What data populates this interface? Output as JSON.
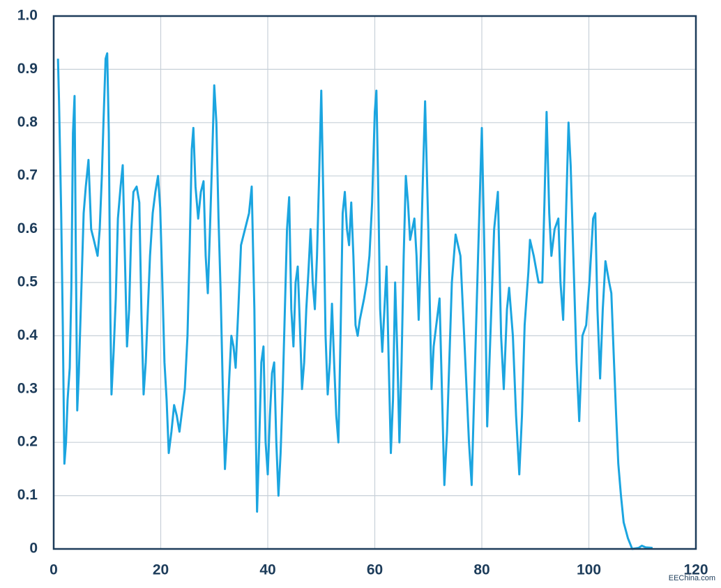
{
  "chart_data": {
    "type": "line",
    "color": "#1ba5e0",
    "annotation": "EEChina.com",
    "xlim": [
      0,
      120
    ],
    "xticks": [
      0,
      20,
      40,
      60,
      80,
      100,
      120
    ],
    "ylim": [
      0,
      1
    ],
    "yticks": [
      0,
      0.1,
      0.2,
      0.3,
      0.4,
      0.5,
      0.6,
      0.7,
      0.8,
      0.9,
      {
        "value": 1,
        "label": "1.0"
      }
    ],
    "grid": true,
    "x": [
      0.8,
      1.0,
      1.4,
      1.7,
      2.0,
      2.3,
      2.6,
      3.0,
      3.3,
      3.6,
      3.9,
      4.1,
      4.4,
      4.7,
      5.0,
      5.3,
      5.6,
      6.0,
      6.5,
      7.0,
      7.5,
      8.2,
      8.6,
      9.0,
      9.3,
      9.7,
      10.0,
      10.3,
      10.6,
      10.8,
      11.2,
      11.6,
      12.0,
      12.5,
      12.9,
      13.3,
      13.7,
      14.1,
      14.5,
      14.9,
      15.5,
      16.0,
      16.4,
      16.8,
      17.2,
      17.6,
      18.0,
      18.5,
      19.0,
      19.5,
      19.9,
      20.3,
      20.7,
      21.1,
      21.5,
      22.0,
      22.5,
      23.0,
      23.5,
      24.0,
      24.5,
      25.0,
      25.4,
      25.8,
      26.1,
      26.5,
      27.0,
      27.5,
      28.0,
      28.4,
      28.8,
      29.2,
      29.6,
      30.0,
      30.4,
      30.8,
      31.2,
      31.6,
      32.0,
      32.4,
      32.8,
      33.2,
      33.6,
      34.0,
      34.5,
      35.0,
      35.5,
      36.0,
      36.5,
      37.0,
      37.5,
      37.8,
      38.0,
      38.4,
      38.8,
      39.2,
      39.6,
      40.0,
      40.4,
      40.8,
      41.2,
      41.6,
      42.0,
      42.4,
      42.8,
      43.2,
      43.6,
      44.0,
      44.4,
      44.8,
      45.2,
      45.6,
      46.0,
      46.4,
      46.8,
      47.2,
      47.6,
      48.0,
      48.4,
      48.8,
      49.2,
      49.6,
      50.0,
      50.4,
      50.8,
      51.2,
      51.6,
      52.0,
      52.4,
      52.8,
      53.2,
      53.6,
      54.0,
      54.4,
      54.8,
      55.2,
      55.6,
      56.0,
      56.4,
      56.8,
      57.2,
      57.6,
      58.0,
      58.5,
      59.0,
      59.5,
      60.0,
      60.3,
      60.6,
      61.0,
      61.4,
      61.8,
      62.2,
      62.6,
      63.0,
      63.4,
      63.8,
      64.2,
      64.6,
      65.0,
      65.4,
      65.8,
      66.2,
      66.6,
      67.0,
      67.4,
      67.8,
      68.2,
      68.6,
      69.0,
      69.4,
      70.0,
      70.6,
      71.0,
      72.1,
      73.0,
      73.5,
      74.4,
      75.1,
      76.0,
      76.7,
      77.6,
      78.1,
      78.6,
      79.3,
      80.0,
      80.6,
      81.0,
      81.6,
      82.3,
      83.0,
      83.6,
      84.1,
      84.7,
      85.1,
      85.8,
      86.4,
      87.0,
      87.5,
      88.0,
      88.7,
      89.0,
      89.7,
      90.6,
      91.3,
      91.7,
      92.1,
      92.6,
      93.0,
      93.6,
      94.3,
      94.7,
      95.2,
      95.6,
      96.2,
      96.6,
      97.1,
      97.7,
      98.2,
      98.8,
      99.5,
      100.1,
      100.8,
      101.2,
      101.6,
      102.1,
      102.6,
      103.1,
      103.8,
      104.2,
      104.7,
      105.1,
      105.5,
      106.0,
      106.5,
      107.3,
      108.1,
      109.3,
      109.9,
      110.6,
      111.9
    ],
    "values": [
      0.92,
      0.84,
      0.63,
      0.42,
      0.16,
      0.2,
      0.28,
      0.34,
      0.49,
      0.78,
      0.85,
      0.6,
      0.26,
      0.33,
      0.43,
      0.53,
      0.63,
      0.68,
      0.73,
      0.6,
      0.58,
      0.55,
      0.6,
      0.7,
      0.8,
      0.92,
      0.93,
      0.78,
      0.43,
      0.29,
      0.37,
      0.47,
      0.62,
      0.68,
      0.72,
      0.55,
      0.38,
      0.45,
      0.6,
      0.67,
      0.68,
      0.65,
      0.44,
      0.29,
      0.35,
      0.45,
      0.55,
      0.63,
      0.67,
      0.7,
      0.64,
      0.5,
      0.35,
      0.28,
      0.18,
      0.22,
      0.27,
      0.25,
      0.22,
      0.26,
      0.3,
      0.4,
      0.56,
      0.75,
      0.79,
      0.68,
      0.62,
      0.67,
      0.69,
      0.55,
      0.48,
      0.6,
      0.73,
      0.87,
      0.8,
      0.62,
      0.48,
      0.3,
      0.15,
      0.22,
      0.32,
      0.4,
      0.38,
      0.34,
      0.45,
      0.57,
      0.59,
      0.61,
      0.63,
      0.68,
      0.45,
      0.2,
      0.07,
      0.2,
      0.35,
      0.38,
      0.2,
      0.14,
      0.25,
      0.33,
      0.35,
      0.2,
      0.1,
      0.18,
      0.3,
      0.45,
      0.6,
      0.66,
      0.45,
      0.38,
      0.5,
      0.53,
      0.42,
      0.3,
      0.35,
      0.45,
      0.52,
      0.6,
      0.5,
      0.45,
      0.55,
      0.7,
      0.86,
      0.65,
      0.4,
      0.29,
      0.35,
      0.46,
      0.35,
      0.25,
      0.2,
      0.4,
      0.63,
      0.67,
      0.6,
      0.57,
      0.65,
      0.55,
      0.42,
      0.4,
      0.43,
      0.45,
      0.47,
      0.5,
      0.55,
      0.65,
      0.82,
      0.86,
      0.7,
      0.45,
      0.37,
      0.45,
      0.53,
      0.35,
      0.18,
      0.28,
      0.5,
      0.37,
      0.2,
      0.35,
      0.55,
      0.7,
      0.65,
      0.58,
      0.6,
      0.62,
      0.55,
      0.43,
      0.55,
      0.7,
      0.84,
      0.6,
      0.3,
      0.38,
      0.47,
      0.12,
      0.22,
      0.5,
      0.59,
      0.55,
      0.4,
      0.2,
      0.12,
      0.3,
      0.55,
      0.79,
      0.5,
      0.23,
      0.4,
      0.6,
      0.67,
      0.4,
      0.3,
      0.45,
      0.49,
      0.4,
      0.25,
      0.14,
      0.25,
      0.42,
      0.52,
      0.58,
      0.55,
      0.5,
      0.5,
      0.65,
      0.82,
      0.63,
      0.55,
      0.6,
      0.62,
      0.5,
      0.43,
      0.58,
      0.8,
      0.72,
      0.55,
      0.35,
      0.24,
      0.4,
      0.42,
      0.5,
      0.62,
      0.63,
      0.45,
      0.32,
      0.45,
      0.54,
      0.5,
      0.48,
      0.35,
      0.25,
      0.16,
      0.1,
      0.05,
      0.02,
      0,
      0.002,
      0.006,
      0.003,
      0.002
    ]
  }
}
